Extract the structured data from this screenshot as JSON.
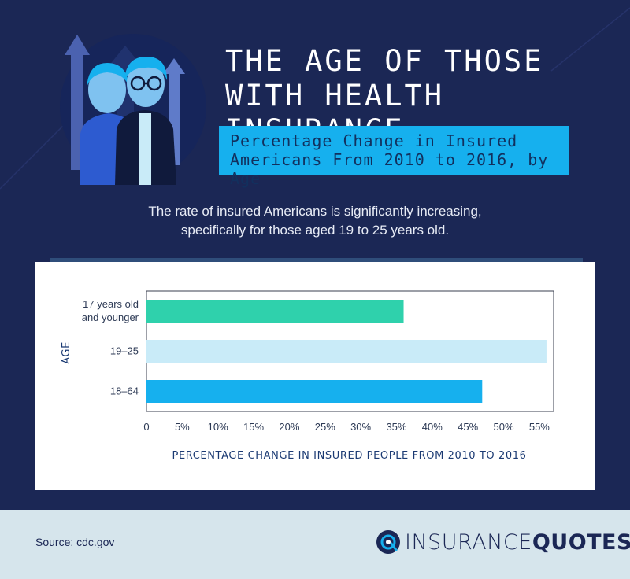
{
  "header": {
    "title": "THE AGE OF THOSE WITH HEALTH INSURANCE",
    "subtitle": "Percentage Change in Insured Americans From 2010 to 2016, by Age",
    "intro": "The rate of insured Americans is significantly increasing, specifically for those aged 19 to 25 years old."
  },
  "chart_data": {
    "type": "bar",
    "orientation": "horizontal",
    "title": "",
    "categories": [
      "17 years old and younger",
      "19–25",
      "18–64"
    ],
    "category_lines": [
      [
        "17 years old",
        "and younger"
      ],
      [
        "19–25"
      ],
      [
        "18–64"
      ]
    ],
    "values": [
      36,
      56,
      47
    ],
    "colors": [
      "#2fd1ac",
      "#c9ebf8",
      "#16b0ee"
    ],
    "xlim": [
      0,
      57
    ],
    "xticks": [
      0,
      5,
      10,
      15,
      20,
      25,
      30,
      35,
      40,
      45,
      50,
      55
    ],
    "xtick_labels": [
      "0",
      "5%",
      "10%",
      "15%",
      "20%",
      "25%",
      "30%",
      "35%",
      "40%",
      "45%",
      "50%",
      "55%"
    ],
    "xlabel": "PERCENTAGE CHANGE IN INSURED PEOPLE FROM 2010 TO 2016",
    "ylabel": "AGE",
    "grid": false,
    "legend": "none"
  },
  "footer": {
    "source": "Source: cdc.gov",
    "brand_part1": "INSURANCE",
    "brand_part2": "QUOTES"
  }
}
